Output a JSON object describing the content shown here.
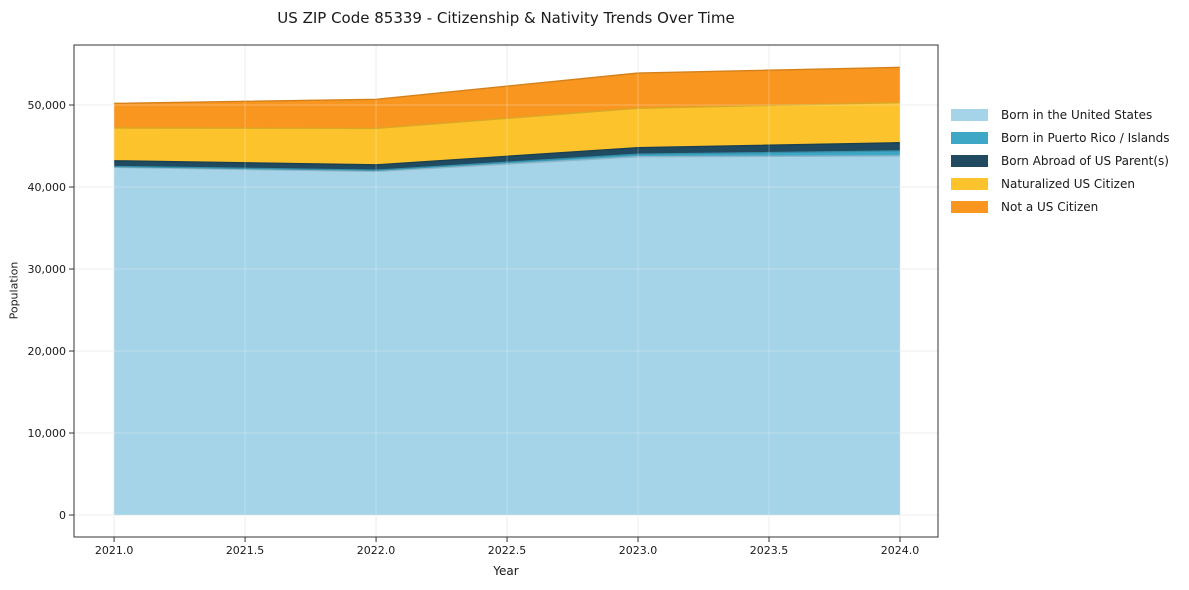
{
  "chart_data": {
    "type": "area",
    "stacked": true,
    "title": "US ZIP Code 85339 - Citizenship & Nativity Trends Over Time",
    "xlabel": "Year",
    "ylabel": "Population",
    "x": [
      2021,
      2022,
      2023,
      2024
    ],
    "series": [
      {
        "name": "Born in the United States",
        "color": "#a5d3e7",
        "values": [
          42400,
          41900,
          43700,
          43800
        ]
      },
      {
        "name": "Born in Puerto Rico / Islands",
        "color": "#3fa7c6",
        "values": [
          100,
          150,
          300,
          600
        ]
      },
      {
        "name": "Born Abroad of US Parent(s)",
        "color": "#1f4a5f",
        "values": [
          700,
          650,
          800,
          1000
        ]
      },
      {
        "name": "Naturalized US Citizen",
        "color": "#fcc32c",
        "values": [
          4000,
          4450,
          4800,
          4900
        ]
      },
      {
        "name": "Not a US Citizen",
        "color": "#f8961f",
        "values": [
          3000,
          3550,
          4300,
          4300
        ]
      }
    ],
    "totals": [
      50200,
      50700,
      53900,
      54600
    ],
    "xlim": [
      2020.847,
      2024.145
    ],
    "ylim": [
      -2680,
      57320
    ],
    "x_ticks": {
      "values": [
        2021.0,
        2021.5,
        2022.0,
        2022.5,
        2023.0,
        2023.5,
        2024.0
      ],
      "labels": [
        "2021.0",
        "2021.5",
        "2022.0",
        "2022.5",
        "2023.0",
        "2023.5",
        "2024.0"
      ]
    },
    "y_ticks": {
      "values": [
        0,
        10000,
        20000,
        30000,
        40000,
        50000
      ],
      "labels": [
        "0",
        "10,000",
        "20,000",
        "30,000",
        "40,000",
        "50,000"
      ]
    },
    "grid": true,
    "legend_position": "right",
    "colors": {
      "grid": "#e7e7e7",
      "grid_overlay": "rgba(255,255,255,0.28)",
      "spine": "#333333",
      "tick": "#333333",
      "text": "#1a1a1a",
      "background": "#ffffff"
    }
  }
}
